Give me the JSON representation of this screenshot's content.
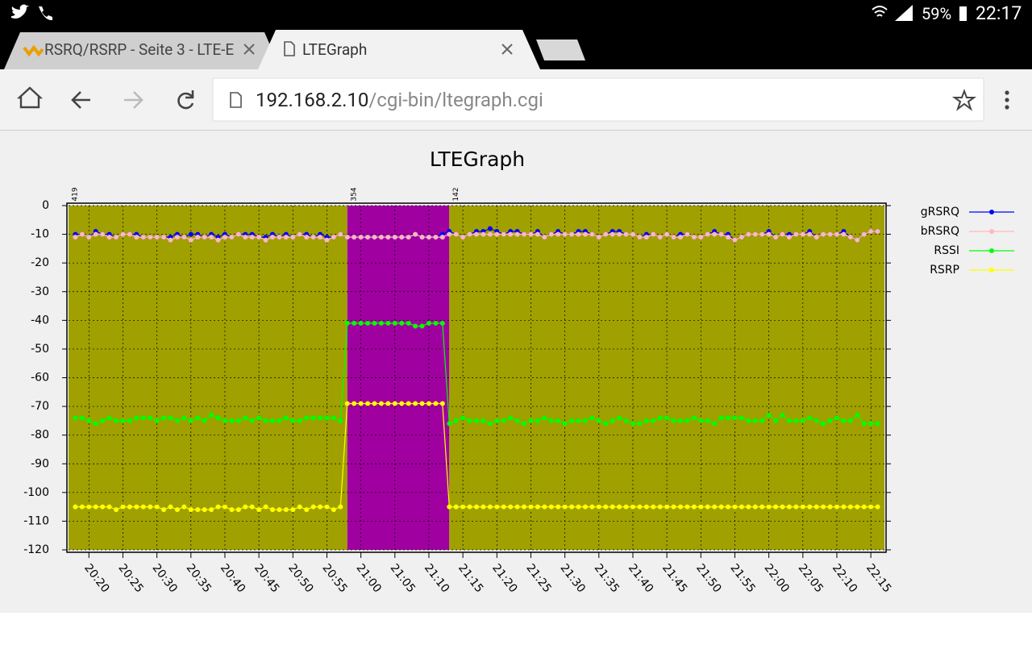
{
  "status_bar": {
    "battery": "59%",
    "time": "22:17"
  },
  "tabs": [
    {
      "title": "RSRQ/RSRP - Seite 3 - LTE-E"
    },
    {
      "title": "LTEGraph"
    }
  ],
  "toolbar": {
    "url_host": "192.168.2.10",
    "url_path": "/cgi-bin/ltegraph.cgi"
  },
  "chart_data": {
    "type": "line",
    "title": "LTEGraph",
    "grid": true,
    "xlim": [
      "20:17",
      "22:17"
    ],
    "xticks": [
      "20:20",
      "20:25",
      "20:30",
      "20:35",
      "20:40",
      "20:45",
      "20:50",
      "20:55",
      "21:00",
      "21:05",
      "21:10",
      "21:15",
      "21:20",
      "21:25",
      "21:30",
      "21:35",
      "21:40",
      "21:45",
      "21:50",
      "21:55",
      "22:00",
      "22:05",
      "22:10",
      "22:15"
    ],
    "ylim": [
      -120,
      0
    ],
    "yticks": [
      0,
      -10,
      -20,
      -30,
      -40,
      -50,
      -60,
      -70,
      -80,
      -90,
      -100,
      -110,
      -120
    ],
    "regions": [
      {
        "label": "419",
        "start": "20:17",
        "end": "20:58",
        "color": "#a0a000"
      },
      {
        "label": "354",
        "start": "20:58",
        "end": "21:13",
        "color": "#a000a0"
      },
      {
        "label": "142",
        "start": "21:13",
        "end": "22:17",
        "color": "#a0a000"
      }
    ],
    "x": [
      "20:18",
      "20:19",
      "20:20",
      "20:21",
      "20:22",
      "20:23",
      "20:24",
      "20:25",
      "20:26",
      "20:27",
      "20:28",
      "20:29",
      "20:30",
      "20:31",
      "20:32",
      "20:33",
      "20:34",
      "20:35",
      "20:36",
      "20:37",
      "20:38",
      "20:39",
      "20:40",
      "20:41",
      "20:42",
      "20:43",
      "20:44",
      "20:45",
      "20:46",
      "20:47",
      "20:48",
      "20:49",
      "20:50",
      "20:51",
      "20:52",
      "20:53",
      "20:54",
      "20:55",
      "20:56",
      "20:57",
      "20:58",
      "20:59",
      "21:00",
      "21:01",
      "21:02",
      "21:03",
      "21:04",
      "21:05",
      "21:06",
      "21:07",
      "21:08",
      "21:09",
      "21:10",
      "21:11",
      "21:12",
      "21:13",
      "21:14",
      "21:15",
      "21:16",
      "21:17",
      "21:18",
      "21:19",
      "21:20",
      "21:21",
      "21:22",
      "21:23",
      "21:24",
      "21:25",
      "21:26",
      "21:27",
      "21:28",
      "21:29",
      "21:30",
      "21:31",
      "21:32",
      "21:33",
      "21:34",
      "21:35",
      "21:36",
      "21:37",
      "21:38",
      "21:39",
      "21:40",
      "21:41",
      "21:42",
      "21:43",
      "21:44",
      "21:45",
      "21:46",
      "21:47",
      "21:48",
      "21:49",
      "21:50",
      "21:51",
      "21:52",
      "21:53",
      "21:54",
      "21:55",
      "21:56",
      "21:57",
      "21:58",
      "21:59",
      "22:00",
      "22:01",
      "22:02",
      "22:03",
      "22:04",
      "22:05",
      "22:06",
      "22:07",
      "22:08",
      "22:09",
      "22:10",
      "22:11",
      "22:12",
      "22:13",
      "22:14",
      "22:15",
      "22:16"
    ],
    "series": [
      {
        "name": "gRSRQ",
        "color": "#0000ff",
        "values": [
          -10,
          -10,
          -11,
          -9,
          -10,
          -10,
          -11,
          -10,
          -10,
          -10,
          -11,
          -11,
          -11,
          -11,
          -11,
          -10,
          -11,
          -10,
          -10,
          -11,
          -10,
          -11,
          -10,
          -11,
          -10,
          -10,
          -10,
          -11,
          -11,
          -10,
          -11,
          -10,
          -11,
          -10,
          -10,
          -11,
          -10,
          -11,
          -11,
          -10,
          -11,
          -11,
          -11,
          -11,
          -11,
          -11,
          -11,
          -11,
          -11,
          -11,
          -10,
          -11,
          -11,
          -11,
          -10,
          -9,
          -10,
          -11,
          -10,
          -9,
          -9,
          -8,
          -9,
          -10,
          -9,
          -9,
          -10,
          -10,
          -9,
          -11,
          -10,
          -9,
          -10,
          -10,
          -9,
          -9,
          -10,
          -11,
          -10,
          -9,
          -9,
          -10,
          -10,
          -11,
          -10,
          -10,
          -11,
          -10,
          -11,
          -10,
          -10,
          -11,
          -11,
          -10,
          -9,
          -10,
          -10,
          -12,
          -11,
          -10,
          -10,
          -10,
          -9,
          -11,
          -10,
          -10,
          -10,
          -10,
          -9,
          -11,
          -10,
          -10,
          -10,
          -9,
          -11,
          -12,
          -10,
          -9,
          -9
        ]
      },
      {
        "name": "bRSRQ",
        "color": "#ffb6c1",
        "values": [
          -11,
          -10,
          -11,
          -10,
          -10,
          -11,
          -11,
          -10,
          -10,
          -11,
          -11,
          -11,
          -11,
          -11,
          -12,
          -11,
          -11,
          -12,
          -11,
          -11,
          -11,
          -12,
          -11,
          -11,
          -10,
          -11,
          -11,
          -11,
          -12,
          -11,
          -11,
          -11,
          -11,
          -10,
          -11,
          -11,
          -11,
          -12,
          -11,
          -10,
          -11,
          -11,
          -11,
          -11,
          -11,
          -11,
          -11,
          -11,
          -11,
          -11,
          -10,
          -11,
          -11,
          -11,
          -11,
          -10,
          -10,
          -11,
          -10,
          -10,
          -10,
          -10,
          -10,
          -10,
          -10,
          -10,
          -10,
          -10,
          -10,
          -11,
          -10,
          -10,
          -10,
          -10,
          -10,
          -10,
          -10,
          -11,
          -10,
          -10,
          -10,
          -10,
          -10,
          -11,
          -11,
          -10,
          -11,
          -10,
          -11,
          -11,
          -10,
          -11,
          -11,
          -10,
          -10,
          -10,
          -11,
          -12,
          -11,
          -10,
          -10,
          -10,
          -10,
          -11,
          -10,
          -11,
          -10,
          -10,
          -10,
          -11,
          -10,
          -10,
          -10,
          -10,
          -11,
          -12,
          -10,
          -9,
          -9
        ]
      },
      {
        "name": "RSSI",
        "color": "#00ff00",
        "values": [
          -74,
          -74,
          -75,
          -76,
          -75,
          -74,
          -75,
          -75,
          -75,
          -74,
          -74,
          -74,
          -75,
          -74,
          -74,
          -75,
          -74,
          -75,
          -74,
          -75,
          -73,
          -74,
          -75,
          -75,
          -75,
          -74,
          -75,
          -74,
          -75,
          -75,
          -75,
          -74,
          -75,
          -75,
          -74,
          -74,
          -74,
          -74,
          -74,
          -75,
          -41,
          -41,
          -41,
          -41,
          -41,
          -41,
          -41,
          -41,
          -41,
          -41,
          -42,
          -42,
          -41,
          -41,
          -41,
          -76,
          -75,
          -74,
          -75,
          -75,
          -75,
          -76,
          -75,
          -75,
          -74,
          -75,
          -76,
          -75,
          -75,
          -74,
          -75,
          -75,
          -76,
          -75,
          -75,
          -75,
          -74,
          -75,
          -76,
          -75,
          -74,
          -75,
          -76,
          -76,
          -75,
          -75,
          -74,
          -74,
          -75,
          -75,
          -75,
          -74,
          -75,
          -75,
          -76,
          -74,
          -74,
          -74,
          -74,
          -75,
          -75,
          -75,
          -73,
          -75,
          -73,
          -75,
          -75,
          -75,
          -74,
          -75,
          -76,
          -75,
          -74,
          -75,
          -75,
          -73,
          -76,
          -76,
          -76
        ]
      },
      {
        "name": "RSRP",
        "color": "#ffff00",
        "values": [
          -105,
          -105,
          -105,
          -105,
          -105,
          -105,
          -106,
          -105,
          -105,
          -105,
          -105,
          -105,
          -105,
          -106,
          -105,
          -106,
          -105,
          -106,
          -106,
          -106,
          -106,
          -105,
          -105,
          -106,
          -106,
          -105,
          -105,
          -106,
          -105,
          -106,
          -106,
          -106,
          -106,
          -105,
          -106,
          -105,
          -105,
          -105,
          -106,
          -105,
          -69,
          -69,
          -69,
          -69,
          -69,
          -69,
          -69,
          -69,
          -69,
          -69,
          -69,
          -69,
          -69,
          -69,
          -69,
          -105,
          -105,
          -105,
          -105,
          -105,
          -105,
          -105,
          -105,
          -105,
          -105,
          -105,
          -105,
          -105,
          -105,
          -105,
          -105,
          -105,
          -105,
          -105,
          -105,
          -105,
          -105,
          -105,
          -105,
          -105,
          -105,
          -105,
          -105,
          -105,
          -105,
          -105,
          -105,
          -105,
          -105,
          -105,
          -105,
          -105,
          -105,
          -105,
          -105,
          -105,
          -105,
          -105,
          -105,
          -105,
          -105,
          -105,
          -105,
          -105,
          -105,
          -105,
          -105,
          -105,
          -105,
          -105,
          -105,
          -105,
          -105,
          -105,
          -105,
          -105,
          -105,
          -105,
          -105
        ]
      }
    ]
  }
}
